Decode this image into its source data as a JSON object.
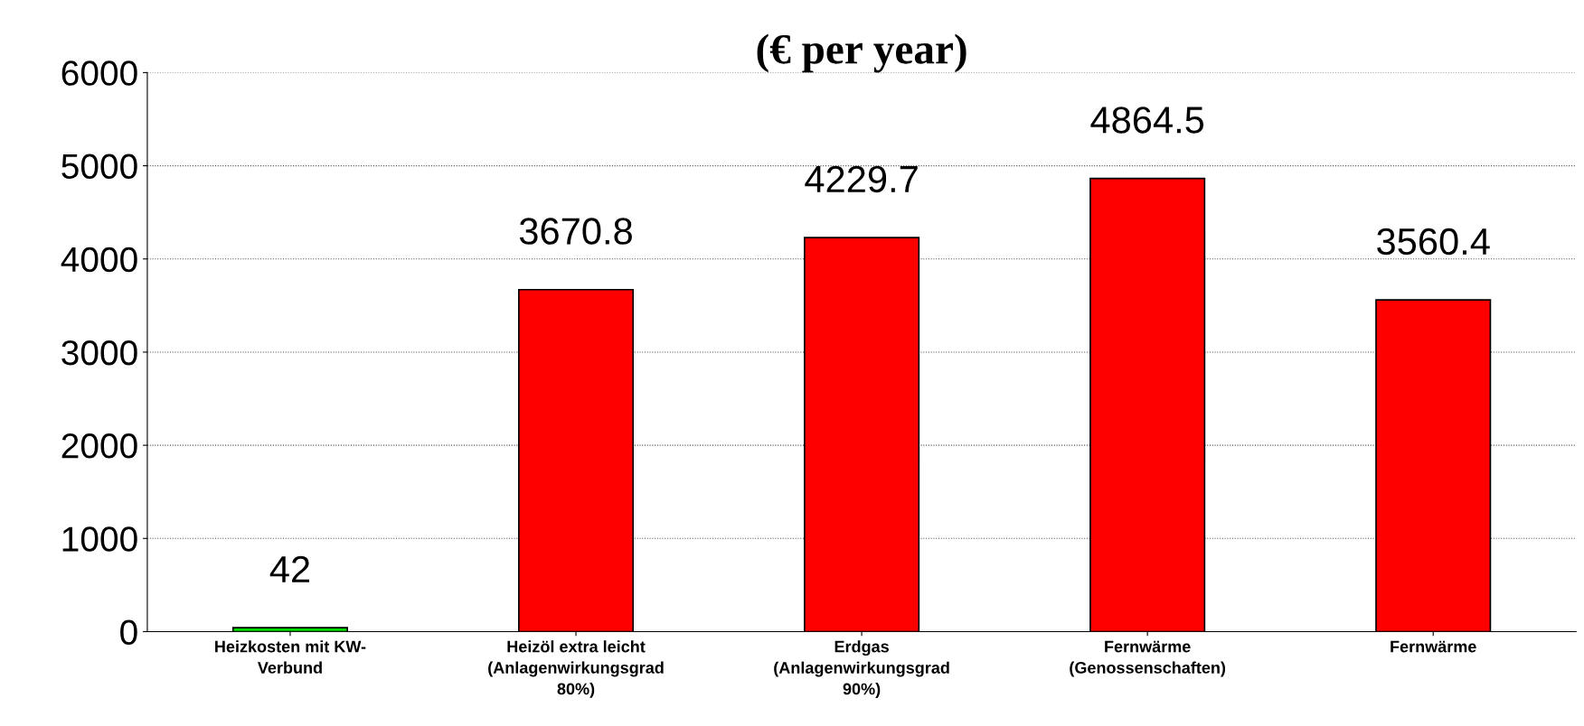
{
  "chart_data": {
    "type": "bar",
    "title": "(€ per year)",
    "categories": [
      "Heizkosten mit KW-\nVerbund",
      "Heizöl extra leicht\n(Anlagenwirkungsgrad\n80%)",
      "Erdgas\n(Anlagenwirkungsgrad\n90%)",
      "Fernwärme\n(Genossenschaften)",
      "Fernwärme"
    ],
    "values": [
      42,
      3670.8,
      4229.7,
      4864.5,
      3560.4
    ],
    "colors": [
      "#00dd00",
      "#ff0000",
      "#ff0000",
      "#ff0000",
      "#ff0000"
    ],
    "ylim": [
      0,
      6000
    ],
    "yticks": [
      0,
      1000,
      2000,
      3000,
      4000,
      5000,
      6000
    ],
    "grid": "y",
    "data_labels": true
  }
}
